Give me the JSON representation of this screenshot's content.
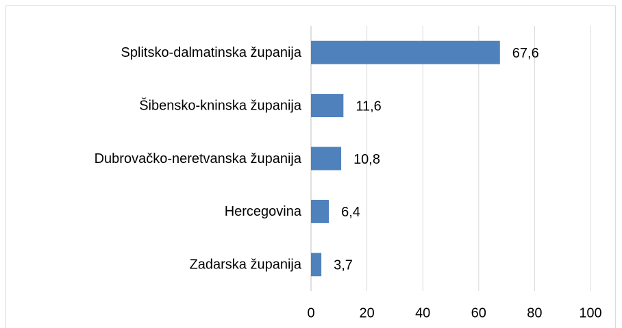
{
  "chart_data": {
    "type": "bar",
    "orientation": "horizontal",
    "categories": [
      "Splitsko-dalmatinska županija",
      "Šibensko-kninska županija",
      "Dubrovačko-neretvanska županija",
      "Hercegovina",
      "Zadarska županija"
    ],
    "values": [
      67.6,
      11.6,
      10.8,
      6.4,
      3.7
    ],
    "value_labels": [
      "67,6",
      "11,6",
      "10,8",
      "6,4",
      "3,7"
    ],
    "color": "#4f81bd",
    "xlim": [
      0,
      100
    ],
    "xticks": [
      0,
      20,
      40,
      60,
      80,
      100
    ],
    "grid": true
  }
}
